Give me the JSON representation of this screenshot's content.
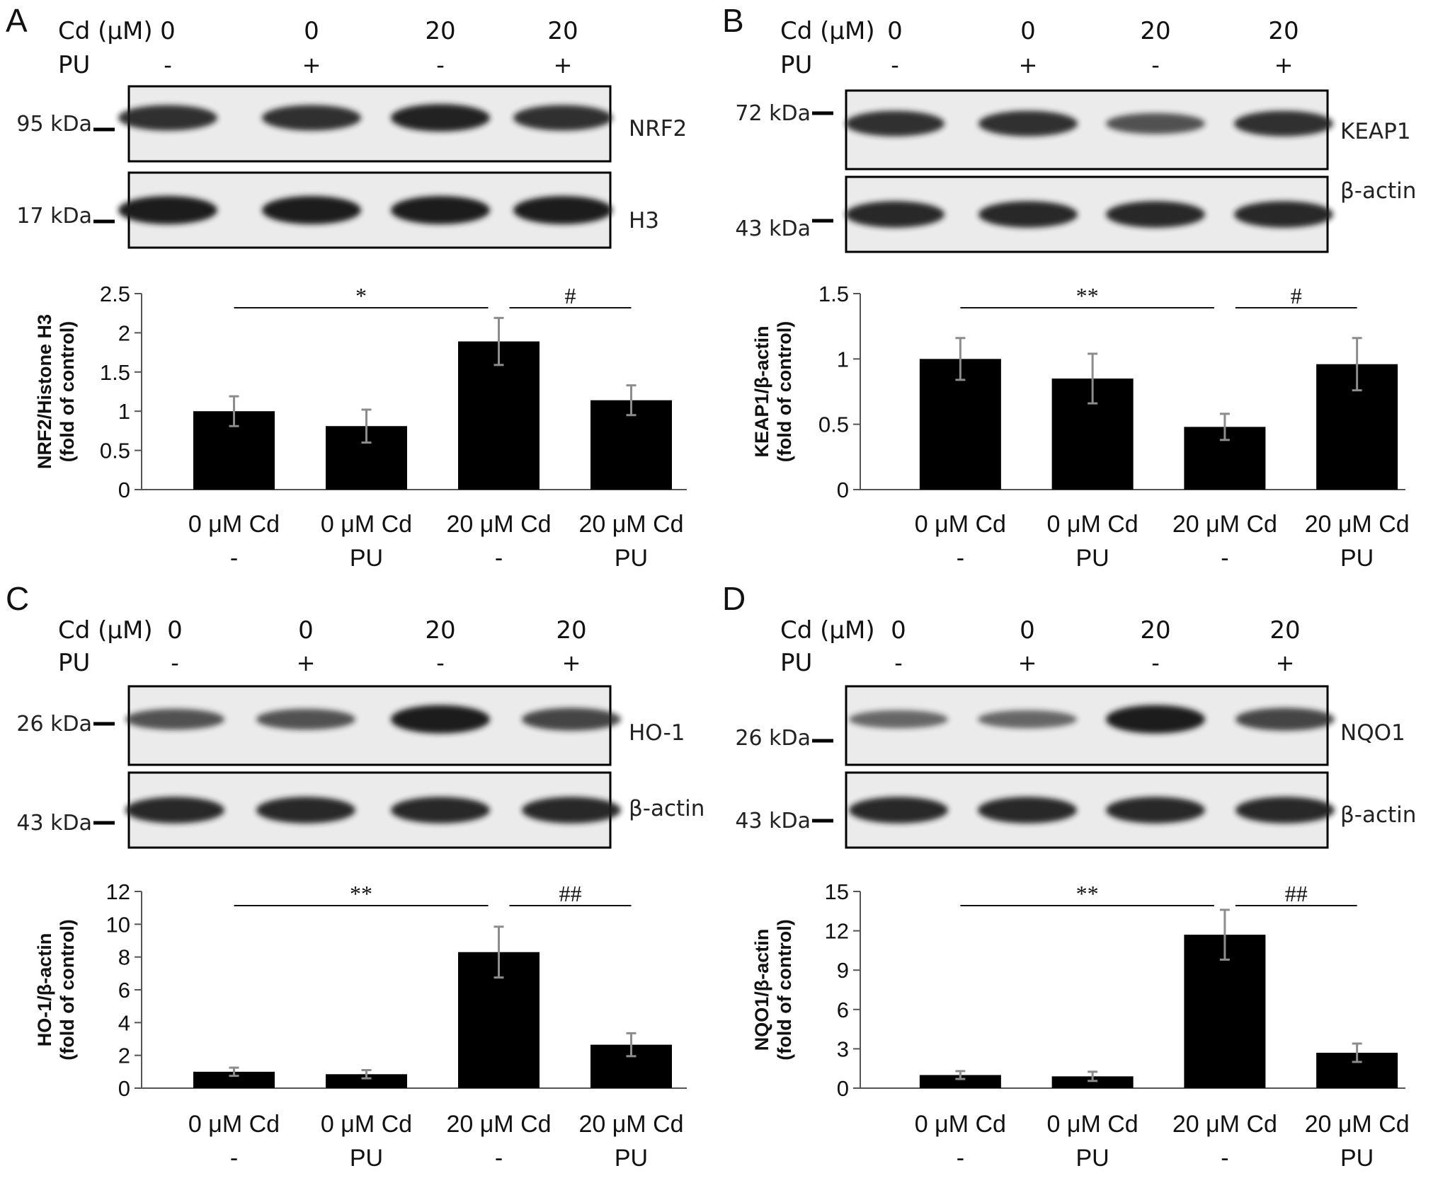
{
  "colors": {
    "bar": "#000000",
    "error_bar": "#8c8c8c",
    "axis": "#555555",
    "sig_line": "#111111",
    "blot_bg": "#ebebeb",
    "band": "#1a1a1a"
  },
  "header_labels": {
    "cd": "Cd (μM)",
    "pu": "PU"
  },
  "chart_data": [
    {
      "panel": "A",
      "type": "bar",
      "header": {
        "cd_values": [
          "0",
          "0",
          "20",
          "20"
        ],
        "pu_values": [
          "-",
          "+",
          "-",
          "+"
        ]
      },
      "blots": [
        {
          "kda": "95 kDa",
          "protein": "NRF2",
          "band_intensity": [
            0.85,
            0.85,
            0.95,
            0.85
          ]
        },
        {
          "kda": "17 kDa",
          "protein": "H3",
          "band_intensity": [
            1,
            1,
            1,
            1
          ]
        }
      ],
      "ylabel_line1": "NRF2/Histone H3",
      "ylabel_line2": "(fold of control)",
      "ylim": [
        0,
        2.5
      ],
      "ticks": [
        0,
        0.5,
        1,
        1.5,
        2,
        2.5
      ],
      "tick_labels": [
        "0",
        "0.5",
        "1",
        "1.5",
        "2",
        "2.5"
      ],
      "categories": [
        "0 μM Cd",
        "0 μM Cd",
        "20 μM Cd",
        "20 μM Cd"
      ],
      "categories_line2": [
        "-",
        "PU",
        "-",
        "PU"
      ],
      "values": [
        1.0,
        0.81,
        1.89,
        1.14
      ],
      "errors": [
        0.19,
        0.21,
        0.3,
        0.19
      ],
      "significance": [
        {
          "from": 0,
          "to": 2,
          "label": "*"
        },
        {
          "from": 2,
          "to": 3,
          "label": "#"
        }
      ]
    },
    {
      "panel": "B",
      "type": "bar",
      "header": {
        "cd_values": [
          "0",
          "0",
          "20",
          "20"
        ],
        "pu_values": [
          "-",
          "+",
          "-",
          "+"
        ]
      },
      "blots": [
        {
          "kda": "72 kDa",
          "protein": "KEAP1",
          "band_intensity": [
            0.85,
            0.85,
            0.6,
            0.85
          ]
        },
        {
          "kda": "43 kDa",
          "protein": "β-actin",
          "band_intensity": [
            0.9,
            0.9,
            0.9,
            0.9
          ]
        }
      ],
      "ylabel_line1": "KEAP1/β-actin",
      "ylabel_line2": "(fold of control)",
      "ylim": [
        0,
        1.5
      ],
      "ticks": [
        0,
        0.5,
        1,
        1.5
      ],
      "tick_labels": [
        "0",
        "0.5",
        "1",
        "1.5"
      ],
      "categories": [
        "0 μM Cd",
        "0 μM Cd",
        "20 μM Cd",
        "20 μM Cd"
      ],
      "categories_line2": [
        "-",
        "PU",
        "-",
        "PU"
      ],
      "values": [
        1.0,
        0.85,
        0.48,
        0.96
      ],
      "errors": [
        0.16,
        0.19,
        0.1,
        0.2
      ],
      "significance": [
        {
          "from": 0,
          "to": 2,
          "label": "**"
        },
        {
          "from": 2,
          "to": 3,
          "label": "#"
        }
      ]
    },
    {
      "panel": "C",
      "type": "bar",
      "header": {
        "cd_values": [
          "0",
          "0",
          "20",
          "20"
        ],
        "pu_values": [
          "-",
          "+",
          "-",
          "+"
        ]
      },
      "blots": [
        {
          "kda": "26 kDa",
          "protein": "HO-1",
          "band_intensity": [
            0.6,
            0.6,
            1,
            0.7
          ]
        },
        {
          "kda": "43 kDa",
          "protein": "β-actin",
          "band_intensity": [
            0.9,
            0.9,
            0.9,
            0.9
          ]
        }
      ],
      "ylabel_line1": "HO-1/β-actin",
      "ylabel_line2": "(fold of control)",
      "ylim": [
        0,
        12
      ],
      "ticks": [
        0,
        2,
        4,
        6,
        8,
        10,
        12
      ],
      "tick_labels": [
        "0",
        "2",
        "4",
        "6",
        "8",
        "10",
        "12"
      ],
      "categories": [
        "0 μM Cd",
        "0 μM Cd",
        "20 μM Cd",
        "20 μM Cd"
      ],
      "categories_line2": [
        "-",
        "PU",
        "-",
        "PU"
      ],
      "values": [
        1.0,
        0.85,
        8.3,
        2.65
      ],
      "errors": [
        0.25,
        0.25,
        1.55,
        0.7
      ],
      "significance": [
        {
          "from": 0,
          "to": 2,
          "label": "**"
        },
        {
          "from": 2,
          "to": 3,
          "label": "##"
        }
      ]
    },
    {
      "panel": "D",
      "type": "bar",
      "header": {
        "cd_values": [
          "0",
          "0",
          "20",
          "20"
        ],
        "pu_values": [
          "-",
          "+",
          "-",
          "+"
        ]
      },
      "blots": [
        {
          "kda": "26 kDa",
          "protein": "NQO1",
          "band_intensity": [
            0.45,
            0.45,
            1,
            0.7
          ]
        },
        {
          "kda": "43 kDa",
          "protein": "β-actin",
          "band_intensity": [
            0.9,
            0.9,
            0.9,
            0.9
          ]
        }
      ],
      "ylabel_line1": "NQO1/β-actin",
      "ylabel_line2": "(fold of control)",
      "ylim": [
        0,
        15
      ],
      "ticks": [
        0,
        3,
        6,
        9,
        12,
        15
      ],
      "tick_labels": [
        "0",
        "3",
        "6",
        "9",
        "12",
        "15"
      ],
      "categories": [
        "0 μM Cd",
        "0 μM Cd",
        "20 μM Cd",
        "20 μM Cd"
      ],
      "categories_line2": [
        "-",
        "PU",
        "-",
        "PU"
      ],
      "values": [
        1.0,
        0.9,
        11.7,
        2.7
      ],
      "errors": [
        0.3,
        0.35,
        1.9,
        0.7
      ],
      "significance": [
        {
          "from": 0,
          "to": 2,
          "label": "**"
        },
        {
          "from": 2,
          "to": 3,
          "label": "##"
        }
      ]
    }
  ]
}
